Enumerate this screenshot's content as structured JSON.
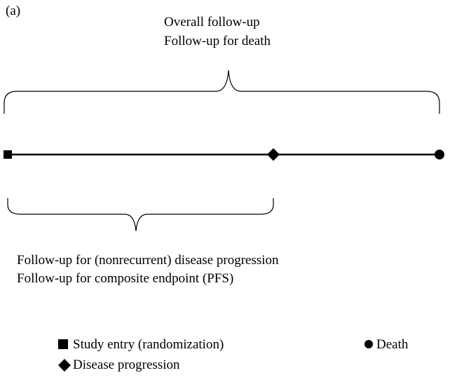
{
  "panel_label": "(a)",
  "top_brace_label": {
    "line1": "Overall follow-up",
    "line2": "Follow-up for death"
  },
  "bottom_brace_label": {
    "line1": "Follow-up for (nonrecurrent) disease progression",
    "line2": "Follow-up for composite endpoint (PFS)"
  },
  "timeline": {
    "events": [
      {
        "marker": "square",
        "label": "Study entry (randomization)"
      },
      {
        "marker": "diamond",
        "label": "Disease progression"
      },
      {
        "marker": "circle",
        "label": "Death"
      }
    ]
  },
  "legend": {
    "entry_label": "Study entry (randomization)",
    "progression_label": "Disease progression",
    "death_label": "Death"
  },
  "colors": {
    "ink": "#000000",
    "background": "#ffffff"
  }
}
